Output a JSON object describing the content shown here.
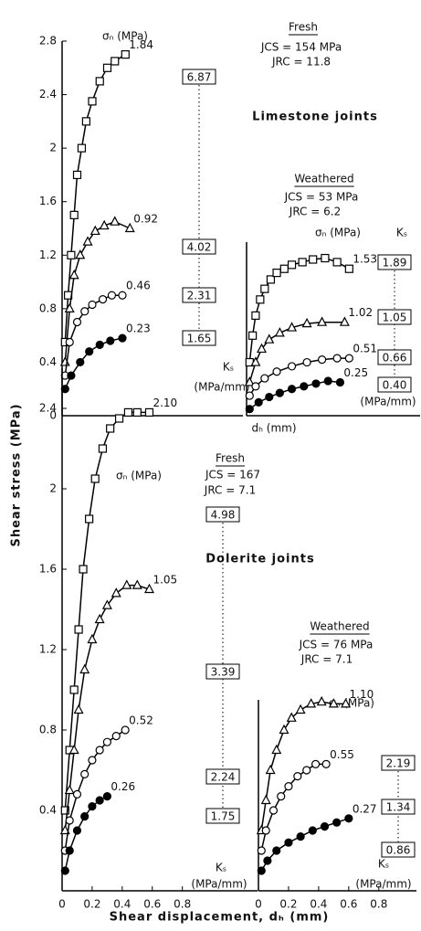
{
  "y_axis_label": "Shear stress (MPa)",
  "x_axis_label": "Shear displacement, dₕ (mm)",
  "mid_axis_label": "dₕ (mm)",
  "chart_data": [
    {
      "type": "line",
      "title": "Limestone joints",
      "condition": "Fresh",
      "jcs": "JCS = 154 MPa",
      "jrc": "JRC = 11.8",
      "sigma_label": "σₙ (MPa)",
      "ks_label": "Kₛ",
      "ks_unit": "(MPa/mm)",
      "ks_values": [
        "6.87",
        "4.02",
        "2.31",
        "1.65"
      ],
      "xlim": [
        0,
        1.2
      ],
      "ylim": [
        0,
        2.8
      ],
      "yticks": [
        0,
        0.4,
        0.8,
        1.2,
        1.6,
        2.0,
        2.4,
        2.8
      ],
      "series": [
        {
          "name": "1.84",
          "marker": "square",
          "x": [
            0.02,
            0.04,
            0.06,
            0.08,
            0.1,
            0.13,
            0.16,
            0.2,
            0.25,
            0.3,
            0.35,
            0.42
          ],
          "values": [
            0.55,
            0.9,
            1.2,
            1.5,
            1.8,
            2.0,
            2.2,
            2.35,
            2.5,
            2.6,
            2.65,
            2.7
          ]
        },
        {
          "name": "0.92",
          "marker": "triangle",
          "x": [
            0.02,
            0.05,
            0.08,
            0.12,
            0.17,
            0.22,
            0.28,
            0.35,
            0.45
          ],
          "values": [
            0.4,
            0.8,
            1.05,
            1.2,
            1.3,
            1.38,
            1.42,
            1.45,
            1.4
          ]
        },
        {
          "name": "0.46",
          "marker": "circle",
          "x": [
            0.02,
            0.05,
            0.1,
            0.15,
            0.2,
            0.27,
            0.33,
            0.4
          ],
          "values": [
            0.3,
            0.55,
            0.7,
            0.78,
            0.83,
            0.87,
            0.9,
            0.9
          ]
        },
        {
          "name": "0.23",
          "marker": "filled-circle",
          "x": [
            0.02,
            0.06,
            0.12,
            0.18,
            0.25,
            0.32,
            0.4
          ],
          "values": [
            0.2,
            0.3,
            0.4,
            0.48,
            0.53,
            0.56,
            0.58
          ]
        }
      ]
    },
    {
      "type": "line",
      "condition": "Weathered",
      "jcs": "JCS = 53 MPa",
      "jrc": "JRC = 6.2",
      "sigma_label": "σₙ (MPa)",
      "ks_label": "Kₛ",
      "ks_unit": "(MPa/mm)",
      "ks_values": [
        "1.89",
        "1.05",
        "0.66",
        "0.40"
      ],
      "xlim": [
        0,
        1.15
      ],
      "ylim": [
        0,
        1.3
      ],
      "series": [
        {
          "name": "1.53",
          "marker": "square",
          "x": [
            0.02,
            0.04,
            0.06,
            0.09,
            0.12,
            0.16,
            0.2,
            0.25,
            0.3,
            0.37,
            0.44,
            0.52,
            0.6,
            0.68
          ],
          "values": [
            0.4,
            0.6,
            0.75,
            0.87,
            0.95,
            1.02,
            1.07,
            1.1,
            1.13,
            1.15,
            1.17,
            1.18,
            1.15,
            1.1
          ]
        },
        {
          "name": "1.02",
          "marker": "triangle",
          "x": [
            0.02,
            0.06,
            0.1,
            0.15,
            0.22,
            0.3,
            0.4,
            0.5,
            0.65
          ],
          "values": [
            0.25,
            0.4,
            0.5,
            0.57,
            0.62,
            0.66,
            0.69,
            0.7,
            0.7
          ]
        },
        {
          "name": "0.51",
          "marker": "circle",
          "x": [
            0.02,
            0.06,
            0.12,
            0.2,
            0.3,
            0.4,
            0.5,
            0.6,
            0.68
          ],
          "values": [
            0.15,
            0.22,
            0.28,
            0.33,
            0.37,
            0.4,
            0.42,
            0.43,
            0.43
          ]
        },
        {
          "name": "0.25",
          "marker": "filled-circle",
          "x": [
            0.02,
            0.08,
            0.15,
            0.22,
            0.3,
            0.38,
            0.46,
            0.54,
            0.62
          ],
          "values": [
            0.05,
            0.1,
            0.14,
            0.17,
            0.2,
            0.22,
            0.24,
            0.26,
            0.25
          ]
        }
      ]
    },
    {
      "type": "line",
      "title": "Dolerite joints",
      "condition": "Fresh",
      "jcs": "JCS = 167",
      "jrc": "JRC = 7.1",
      "sigma_label": "σₙ (MPa)",
      "ks_label": "Kₛ",
      "ks_unit": "(MPa/mm)",
      "ks_values": [
        "4.98",
        "3.39",
        "2.24",
        "1.75"
      ],
      "xlim": [
        0,
        1.3
      ],
      "ylim": [
        0,
        2.6
      ],
      "xticks": [
        0,
        0.2,
        0.4,
        0.6,
        0.8
      ],
      "yticks": [
        0.4,
        0.8,
        1.2,
        1.6,
        2.0,
        2.4
      ],
      "series": [
        {
          "name": "2.10",
          "marker": "square",
          "x": [
            0.02,
            0.05,
            0.08,
            0.11,
            0.14,
            0.18,
            0.22,
            0.27,
            0.32,
            0.38,
            0.44,
            0.5,
            0.58
          ],
          "values": [
            0.4,
            0.7,
            1.0,
            1.3,
            1.6,
            1.85,
            2.05,
            2.2,
            2.3,
            2.35,
            2.38,
            2.38,
            2.38
          ]
        },
        {
          "name": "1.05",
          "marker": "triangle",
          "x": [
            0.02,
            0.05,
            0.08,
            0.11,
            0.15,
            0.2,
            0.25,
            0.3,
            0.36,
            0.43,
            0.5,
            0.58
          ],
          "values": [
            0.3,
            0.5,
            0.7,
            0.9,
            1.1,
            1.25,
            1.35,
            1.42,
            1.48,
            1.52,
            1.52,
            1.5
          ]
        },
        {
          "name": "0.52",
          "marker": "circle",
          "x": [
            0.02,
            0.05,
            0.1,
            0.15,
            0.2,
            0.25,
            0.3,
            0.36,
            0.42
          ],
          "values": [
            0.2,
            0.35,
            0.48,
            0.58,
            0.65,
            0.7,
            0.74,
            0.77,
            0.8
          ]
        },
        {
          "name": "0.26",
          "marker": "filled-circle",
          "x": [
            0.02,
            0.05,
            0.1,
            0.15,
            0.2,
            0.25,
            0.3
          ],
          "values": [
            0.1,
            0.2,
            0.3,
            0.37,
            0.42,
            0.45,
            0.47
          ]
        }
      ]
    },
    {
      "type": "line",
      "condition": "Weathered",
      "jcs": "JCS = 76 MPa",
      "jrc": "JRC = 7.1",
      "sigma_label": "σₙ (MPa)",
      "ks_label": "Kₛ",
      "ks_unit": "(MPa/mm)",
      "ks_values": [
        "2.19",
        "1.34",
        "0.86"
      ],
      "xlim": [
        0,
        1.05
      ],
      "ylim": [
        0,
        0.95
      ],
      "xticks": [
        0,
        0.2,
        0.4,
        0.6,
        0.8
      ],
      "series": [
        {
          "name": "1.10",
          "marker": "triangle",
          "x": [
            0.02,
            0.05,
            0.08,
            0.12,
            0.17,
            0.22,
            0.28,
            0.35,
            0.42,
            0.5,
            0.58
          ],
          "values": [
            0.3,
            0.45,
            0.6,
            0.7,
            0.8,
            0.86,
            0.9,
            0.93,
            0.94,
            0.93,
            0.93
          ]
        },
        {
          "name": "0.55",
          "marker": "circle",
          "x": [
            0.02,
            0.05,
            0.1,
            0.15,
            0.2,
            0.26,
            0.32,
            0.38,
            0.45
          ],
          "values": [
            0.2,
            0.3,
            0.4,
            0.47,
            0.52,
            0.57,
            0.6,
            0.63,
            0.63
          ]
        },
        {
          "name": "0.27",
          "marker": "filled-circle",
          "x": [
            0.02,
            0.06,
            0.12,
            0.2,
            0.28,
            0.36,
            0.44,
            0.52,
            0.6
          ],
          "values": [
            0.1,
            0.15,
            0.2,
            0.24,
            0.27,
            0.3,
            0.32,
            0.34,
            0.36
          ]
        }
      ]
    }
  ]
}
